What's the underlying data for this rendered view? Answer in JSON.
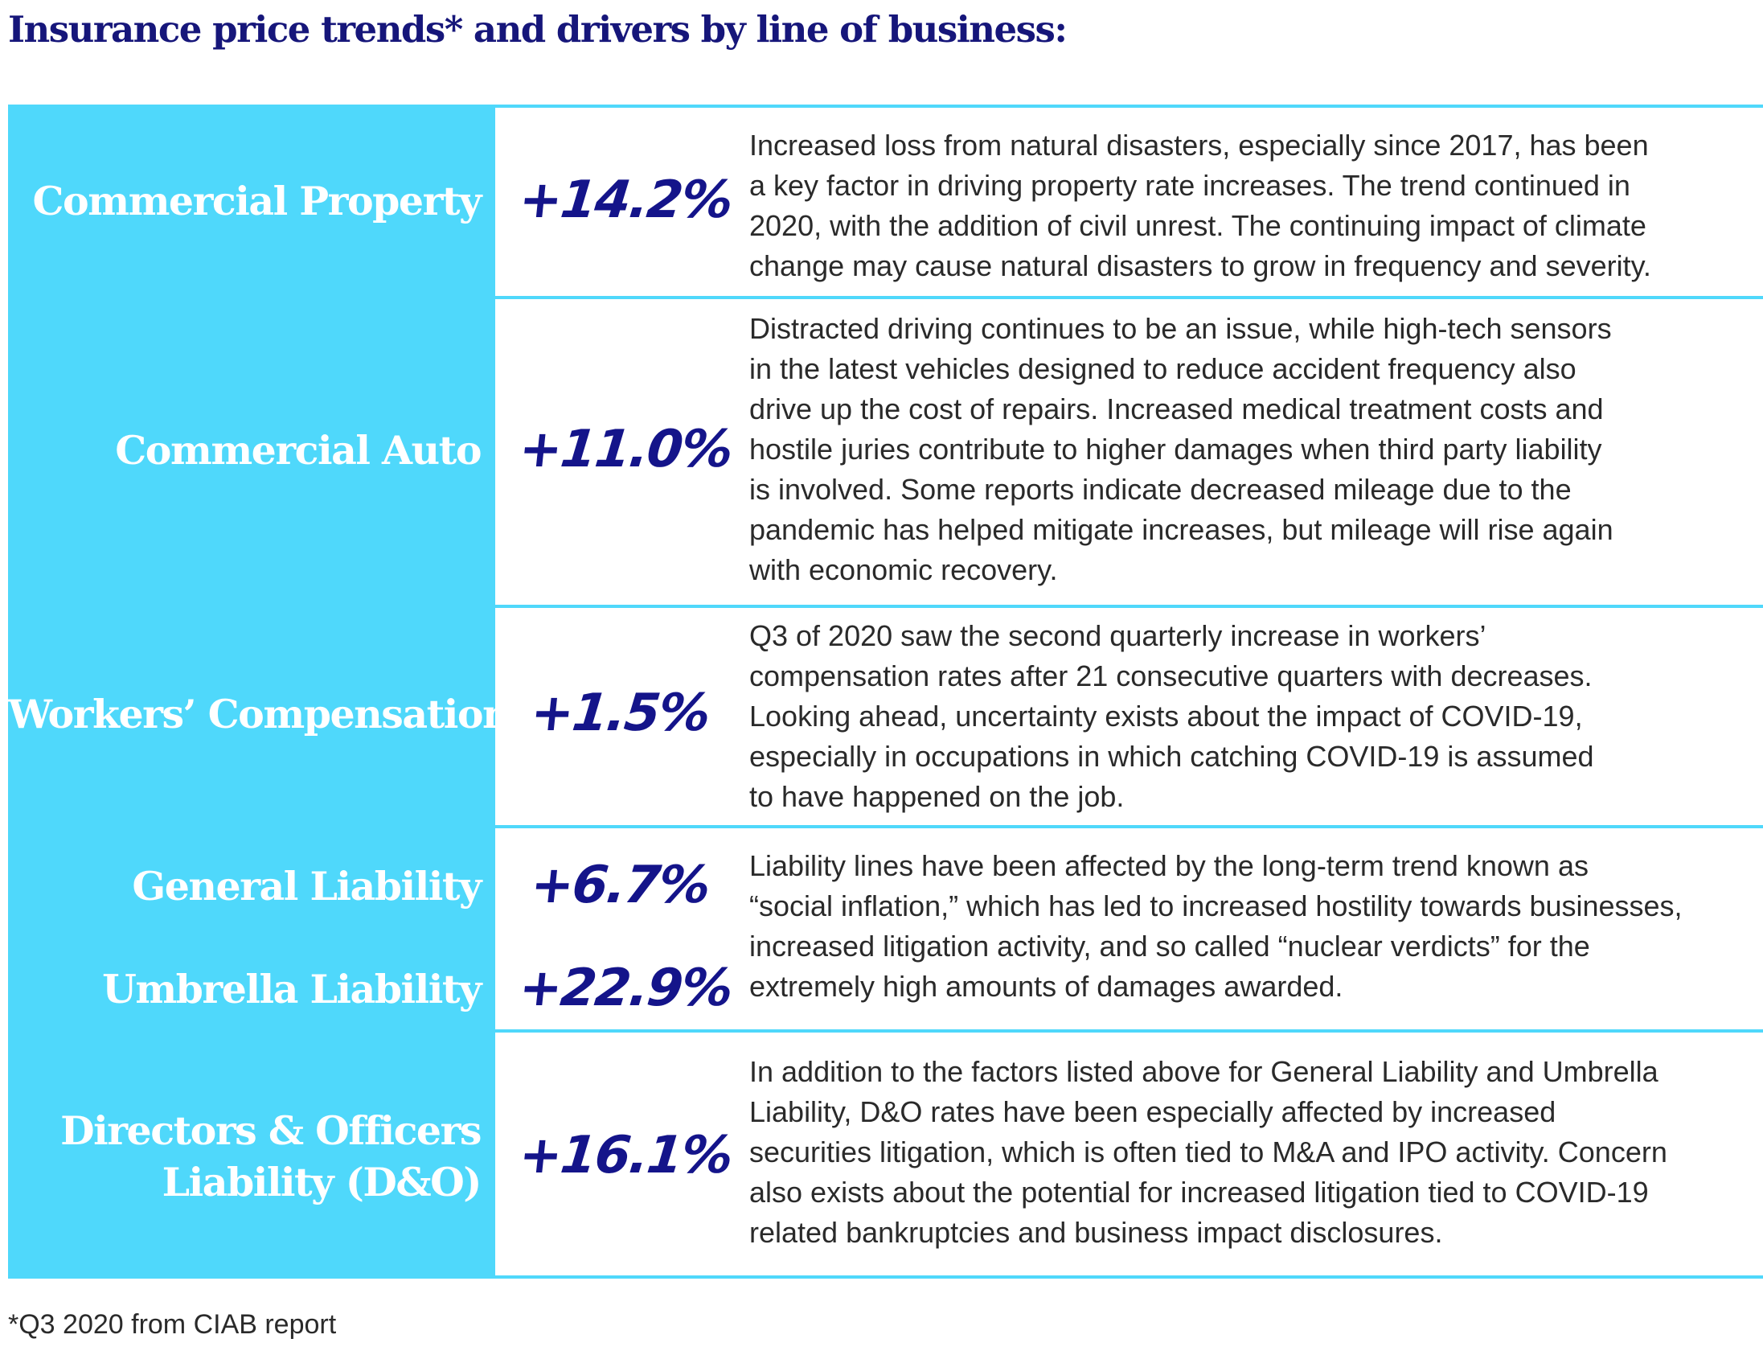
{
  "title": "Insurance price trends* and drivers by line of business:",
  "footnote": "*Q3 2020 from CIAB report",
  "colors": {
    "title": "#16167a",
    "panel": "#4fd8fb",
    "value": "#14148a",
    "body_text": "#2a2a2a"
  },
  "rows": [
    {
      "label": "Commercial Property",
      "value": "+14.2%",
      "description": "Increased loss from natural disasters, especially since 2017, has been\na key factor in driving property rate increases. The trend continued in\n2020, with the addition of civil unrest. The continuing impact of climate\nchange may cause natural disasters to grow in frequency and severity."
    },
    {
      "label": "Commercial Auto",
      "value": "+11.0%",
      "description": "Distracted driving continues to be an issue, while high-tech sensors\nin the latest vehicles designed to reduce accident frequency also\ndrive up the cost of repairs. Increased medical treatment costs and\nhostile juries contribute to higher damages when third party liability\nis involved. Some reports indicate decreased mileage due to the\npandemic has helped mitigate increases, but mileage will rise again\nwith economic recovery."
    },
    {
      "label": "Workers’ Compensation",
      "value": "+1.5%",
      "description": "Q3 of 2020 saw the second quarterly increase in workers’\ncompensation rates after 21 consecutive quarters with decreases.\nLooking ahead, uncertainty exists about the impact of COVID-19,\nespecially in occupations in which catching COVID-19 is assumed\nto have happened on the job."
    },
    {
      "label_general": "General Liability",
      "value_general": "+6.7%",
      "label_umbrella": "Umbrella Liability",
      "value_umbrella": "+22.9%",
      "description": "Liability lines have been affected by the long-term trend known as\n“social inflation,” which has led to increased hostility towards businesses,\nincreased litigation activity, and so called “nuclear verdicts” for the\nextremely high amounts of damages awarded."
    },
    {
      "label_line1": "Directors & Officers",
      "label_line2": "Liability (D&O)",
      "value": "+16.1%",
      "description": "In addition to the factors listed above for General Liability and Umbrella\nLiability, D&O rates have been especially affected by increased\nsecurities litigation, which is often tied to M&A and IPO activity. Concern\nalso exists about the potential for increased litigation tied to COVID-19\nrelated bankruptcies and business impact disclosures."
    }
  ]
}
